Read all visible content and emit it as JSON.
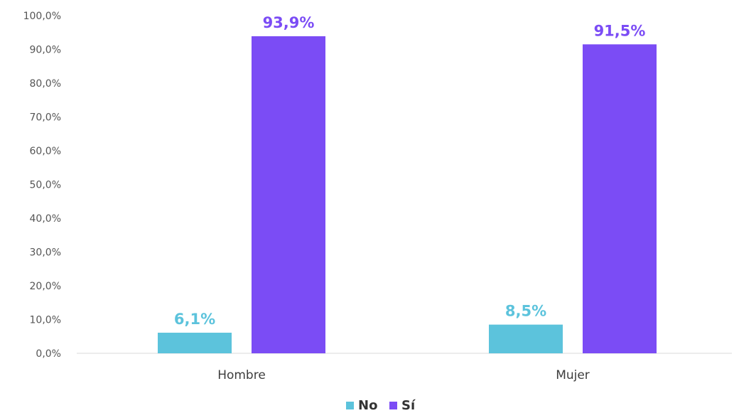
{
  "chart_data": {
    "type": "bar",
    "title": "",
    "xlabel": "",
    "ylabel": "",
    "categories": [
      "Hombre",
      "Mujer"
    ],
    "series": [
      {
        "name": "No",
        "color": "#5cc3dc",
        "values": [
          6.1,
          8.5
        ],
        "labels": [
          "6,1%",
          "8,5%"
        ]
      },
      {
        "name": "Sí",
        "color": "#7b4cf5",
        "values": [
          93.9,
          91.5
        ],
        "labels": [
          "93,9%",
          "91,5%"
        ]
      }
    ],
    "ylim": [
      0,
      100
    ],
    "yticks": [
      "0,0%",
      "10,0%",
      "20,0%",
      "30,0%",
      "40,0%",
      "50,0%",
      "60,0%",
      "70,0%",
      "80,0%",
      "90,0%",
      "100,0%"
    ],
    "grid": false,
    "legend": "bottom-center"
  }
}
